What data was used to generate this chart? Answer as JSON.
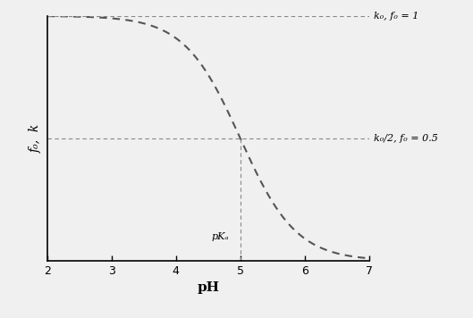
{
  "pKa": 5.0,
  "pH_min": 2,
  "pH_max": 7,
  "xlabel": "pH",
  "ylabel": "f₀,  k",
  "label_top": "k₀, f₀ = 1",
  "label_mid": "k₀/2, f₀ = 0.5",
  "label_pKa": "pKₐ",
  "line_color": "#555555",
  "dashed_color": "#888888",
  "background_color": "#f0f0f0",
  "fig_color": "#f0f0f0",
  "figsize": [
    5.29,
    3.56
  ],
  "dpi": 100,
  "ylim": [
    0,
    1.0
  ],
  "yticks_upper": 1.0,
  "yticks_mid": 0.5
}
